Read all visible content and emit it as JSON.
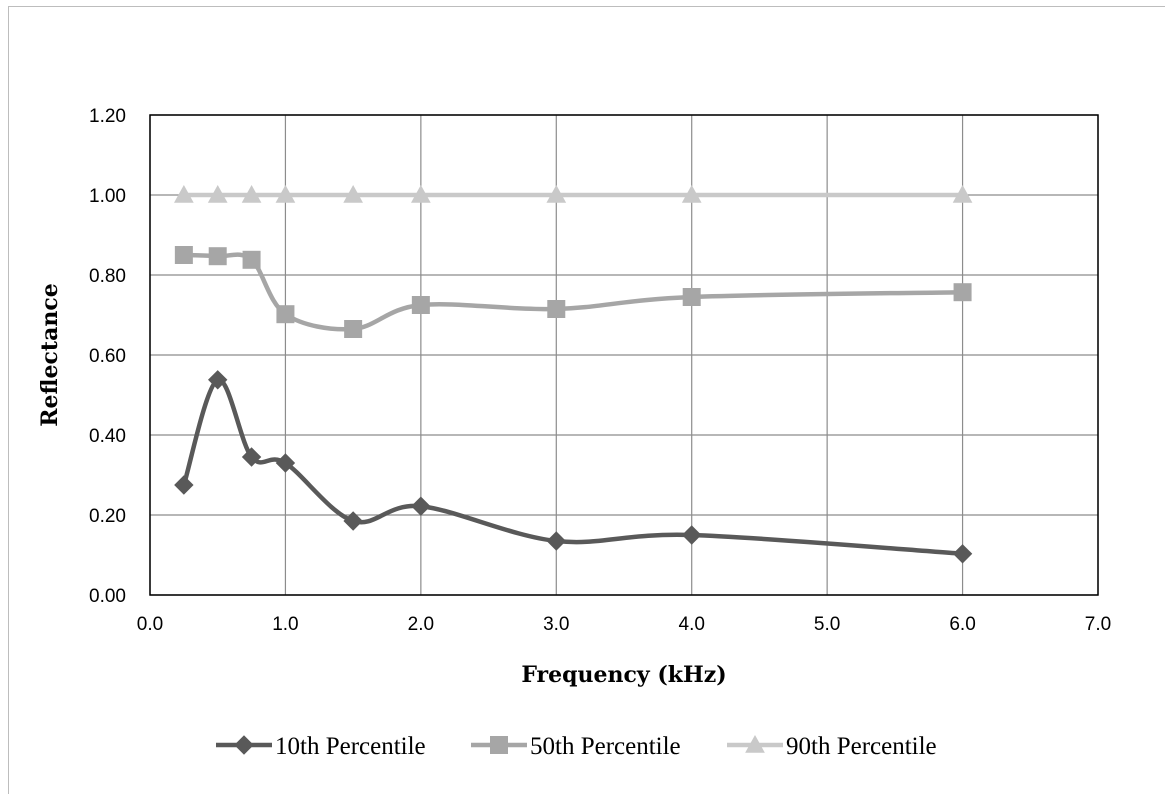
{
  "chart_data": {
    "type": "line",
    "title": "",
    "xlabel": "Frequency (kHz)",
    "ylabel": "Reflectance",
    "xlim": [
      0,
      7
    ],
    "ylim": [
      0,
      1.2
    ],
    "x_ticks": [
      "0.0",
      "1.0",
      "2.0",
      "3.0",
      "4.0",
      "5.0",
      "6.0",
      "7.0"
    ],
    "y_ticks": [
      "0.00",
      "0.20",
      "0.40",
      "0.60",
      "0.80",
      "1.00",
      "1.20"
    ],
    "grid": true,
    "smoothed": true,
    "legend_position": "bottom",
    "x": [
      0.25,
      0.5,
      0.75,
      1.0,
      1.5,
      2.0,
      3.0,
      4.0,
      6.0
    ],
    "series": [
      {
        "name": "10th Percentile",
        "marker": "diamond",
        "color": "#595959",
        "values": [
          0.275,
          0.538,
          0.345,
          0.33,
          0.185,
          0.222,
          0.135,
          0.15,
          0.103
        ]
      },
      {
        "name": "50th Percentile",
        "marker": "square",
        "color": "#a6a6a6",
        "values": [
          0.85,
          0.847,
          0.838,
          0.702,
          0.665,
          0.725,
          0.715,
          0.745,
          0.757
        ]
      },
      {
        "name": "90th Percentile",
        "marker": "triangle",
        "color": "#c9c9c9",
        "values": [
          1.0,
          1.0,
          1.0,
          1.0,
          1.0,
          1.0,
          1.0,
          1.0,
          1.0
        ]
      }
    ]
  }
}
